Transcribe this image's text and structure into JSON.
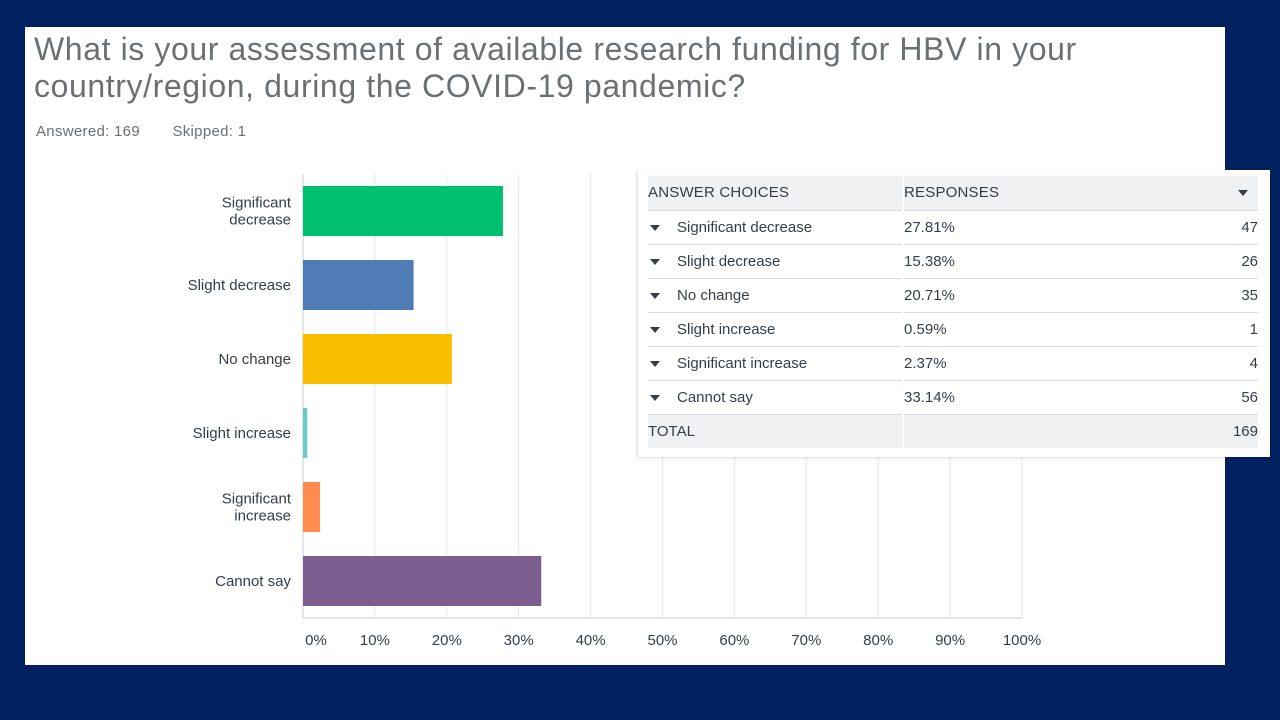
{
  "question": "What is your assessment of available research funding for HBV in your country/region, during the COVID-19 pandemic?",
  "stats": {
    "answered": "Answered: 169",
    "skipped": "Skipped: 1"
  },
  "chart_data": {
    "type": "bar",
    "orientation": "horizontal",
    "categories": [
      "Significant decrease",
      "Slight decrease",
      "No change",
      "Slight increase",
      "Significant increase",
      "Cannot say"
    ],
    "category_labels": [
      [
        "Significant",
        "decrease"
      ],
      [
        "Slight decrease"
      ],
      [
        "No change"
      ],
      [
        "Slight increase"
      ],
      [
        "Significant",
        "increase"
      ],
      [
        "Cannot say"
      ]
    ],
    "values": [
      27.81,
      15.38,
      20.71,
      0.59,
      2.37,
      33.14
    ],
    "colors": [
      "#00bf6f",
      "#507cb6",
      "#f9be00",
      "#6bc8cd",
      "#ff8b4f",
      "#7d5e90"
    ],
    "xlim": [
      0,
      100
    ],
    "ticks": [
      "0%",
      "10%",
      "20%",
      "30%",
      "40%",
      "50%",
      "60%",
      "70%",
      "80%",
      "90%",
      "100%"
    ],
    "grid": true
  },
  "table": {
    "headers": {
      "choices": "ANSWER CHOICES",
      "responses": "RESPONSES"
    },
    "rows": [
      {
        "choice": "Significant decrease",
        "pct": "27.81%",
        "count": "47"
      },
      {
        "choice": "Slight decrease",
        "pct": "15.38%",
        "count": "26"
      },
      {
        "choice": "No change",
        "pct": "20.71%",
        "count": "35"
      },
      {
        "choice": "Slight increase",
        "pct": "0.59%",
        "count": "1"
      },
      {
        "choice": "Significant increase",
        "pct": "2.37%",
        "count": "4"
      },
      {
        "choice": "Cannot say",
        "pct": "33.14%",
        "count": "56"
      }
    ],
    "total": {
      "label": "TOTAL",
      "count": "169"
    }
  }
}
